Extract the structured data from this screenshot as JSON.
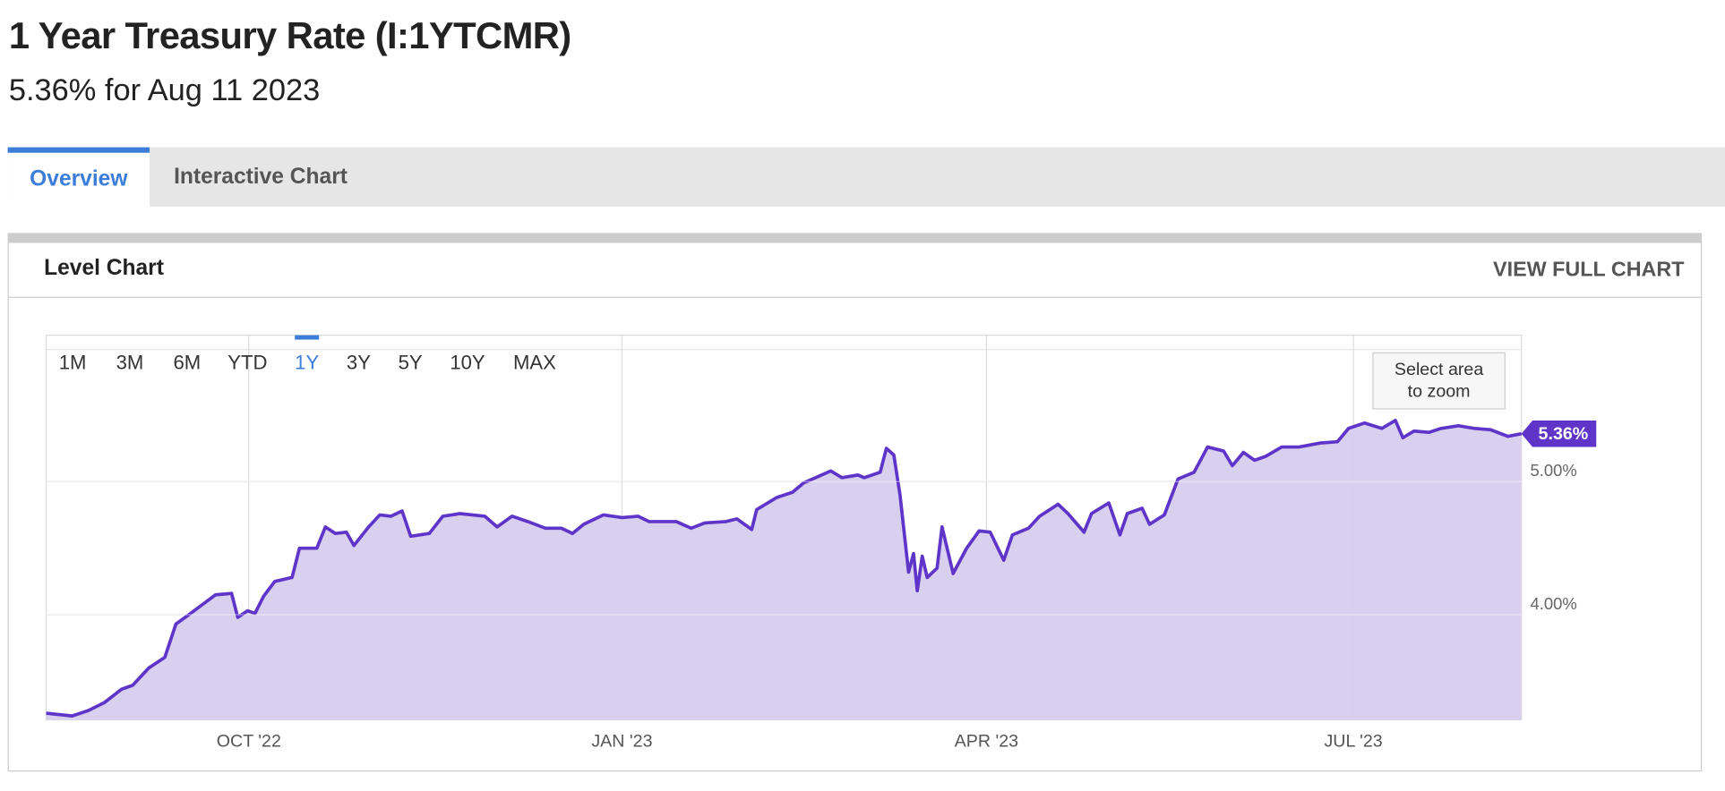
{
  "header": {
    "title": "1 Year Treasury Rate (I:1YTCMR)",
    "subtitle": "5.36% for Aug 11 2023"
  },
  "tabs": [
    "Overview",
    "Interactive Chart"
  ],
  "panel": {
    "title": "Level Chart",
    "link": "VIEW FULL CHART"
  },
  "range_buttons": [
    "1M",
    "3M",
    "6M",
    "YTD",
    "1Y",
    "3Y",
    "5Y",
    "10Y",
    "MAX"
  ],
  "zoom_hint": "Select area to zoom",
  "chart_data": {
    "type": "area",
    "color": "#5f35c9",
    "fill": "#d7ccee",
    "grid": true,
    "x": [
      -1.64,
      -1.43,
      -1.3,
      -1.17,
      -1.03,
      -0.94,
      -0.81,
      -0.68,
      -0.59,
      -0.5,
      -0.37,
      -0.27,
      -0.14,
      -0.09,
      -0.01,
      0.05,
      0.12,
      0.21,
      0.35,
      0.41,
      0.55,
      0.62,
      0.7,
      0.79,
      0.85,
      0.97,
      1.06,
      1.15,
      1.24,
      1.31,
      1.46,
      1.57,
      1.71,
      1.91,
      2.01,
      2.13,
      2.26,
      2.4,
      2.53,
      2.62,
      2.71,
      2.87,
      3.02,
      3.15,
      3.24,
      3.33,
      3.46,
      3.58,
      3.69,
      3.86,
      3.95,
      4.07,
      4.11,
      4.27,
      4.4,
      4.49,
      4.71,
      4.8,
      4.93,
      4.98,
      5.11,
      5.16,
      5.22,
      5.27,
      5.34,
      5.38,
      5.41,
      5.45,
      5.49,
      5.57,
      5.61,
      5.7,
      5.81,
      5.91,
      6.0,
      6.11,
      6.18,
      6.31,
      6.4,
      6.55,
      6.63,
      6.76,
      6.82,
      6.96,
      7.05,
      7.11,
      7.23,
      7.29,
      7.41,
      7.52,
      7.65,
      7.76,
      7.89,
      7.96,
      8.05,
      8.14,
      8.23,
      8.36,
      8.5,
      8.67,
      8.81,
      8.9,
      9.03,
      9.17,
      9.28,
      9.34,
      9.43,
      9.55,
      9.65,
      9.79,
      9.92,
      10.05,
      10.19,
      10.3
    ],
    "values": [
      3.26,
      3.24,
      3.28,
      3.34,
      3.44,
      3.47,
      3.6,
      3.68,
      3.93,
      3.99,
      4.08,
      4.15,
      4.16,
      3.98,
      4.03,
      4.01,
      4.14,
      4.25,
      4.28,
      4.5,
      4.5,
      4.66,
      4.61,
      4.62,
      4.52,
      4.66,
      4.75,
      4.74,
      4.78,
      4.59,
      4.61,
      4.74,
      4.76,
      4.74,
      4.66,
      4.74,
      4.7,
      4.65,
      4.65,
      4.61,
      4.68,
      4.75,
      4.73,
      4.74,
      4.7,
      4.7,
      4.7,
      4.65,
      4.69,
      4.7,
      4.72,
      4.64,
      4.79,
      4.88,
      4.92,
      4.99,
      5.08,
      5.03,
      5.05,
      5.03,
      5.07,
      5.25,
      5.2,
      4.9,
      4.32,
      4.46,
      4.18,
      4.44,
      4.28,
      4.35,
      4.66,
      4.31,
      4.5,
      4.63,
      4.62,
      4.41,
      4.6,
      4.65,
      4.74,
      4.83,
      4.76,
      4.62,
      4.76,
      4.84,
      4.6,
      4.76,
      4.8,
      4.68,
      4.75,
      5.02,
      5.07,
      5.26,
      5.23,
      5.12,
      5.22,
      5.16,
      5.19,
      5.26,
      5.26,
      5.29,
      5.3,
      5.4,
      5.44,
      5.4,
      5.46,
      5.33,
      5.38,
      5.37,
      5.4,
      5.42,
      5.4,
      5.39,
      5.34,
      5.36
    ],
    "xlim": [
      -1.64,
      10.3
    ],
    "xticks": [
      {
        "value": 0,
        "label": "OCT '22"
      },
      {
        "value": 3.02,
        "label": "JAN '23"
      },
      {
        "value": 5.97,
        "label": "APR '23"
      },
      {
        "value": 8.94,
        "label": "JUL '23"
      }
    ],
    "ylim": [
      3.21,
      6.1
    ],
    "yticks": [
      {
        "value": 4,
        "label": "4.00%"
      },
      {
        "value": 5,
        "label": "5.00%"
      }
    ],
    "last_value": {
      "value": 5.36,
      "label": "5.36%"
    }
  }
}
